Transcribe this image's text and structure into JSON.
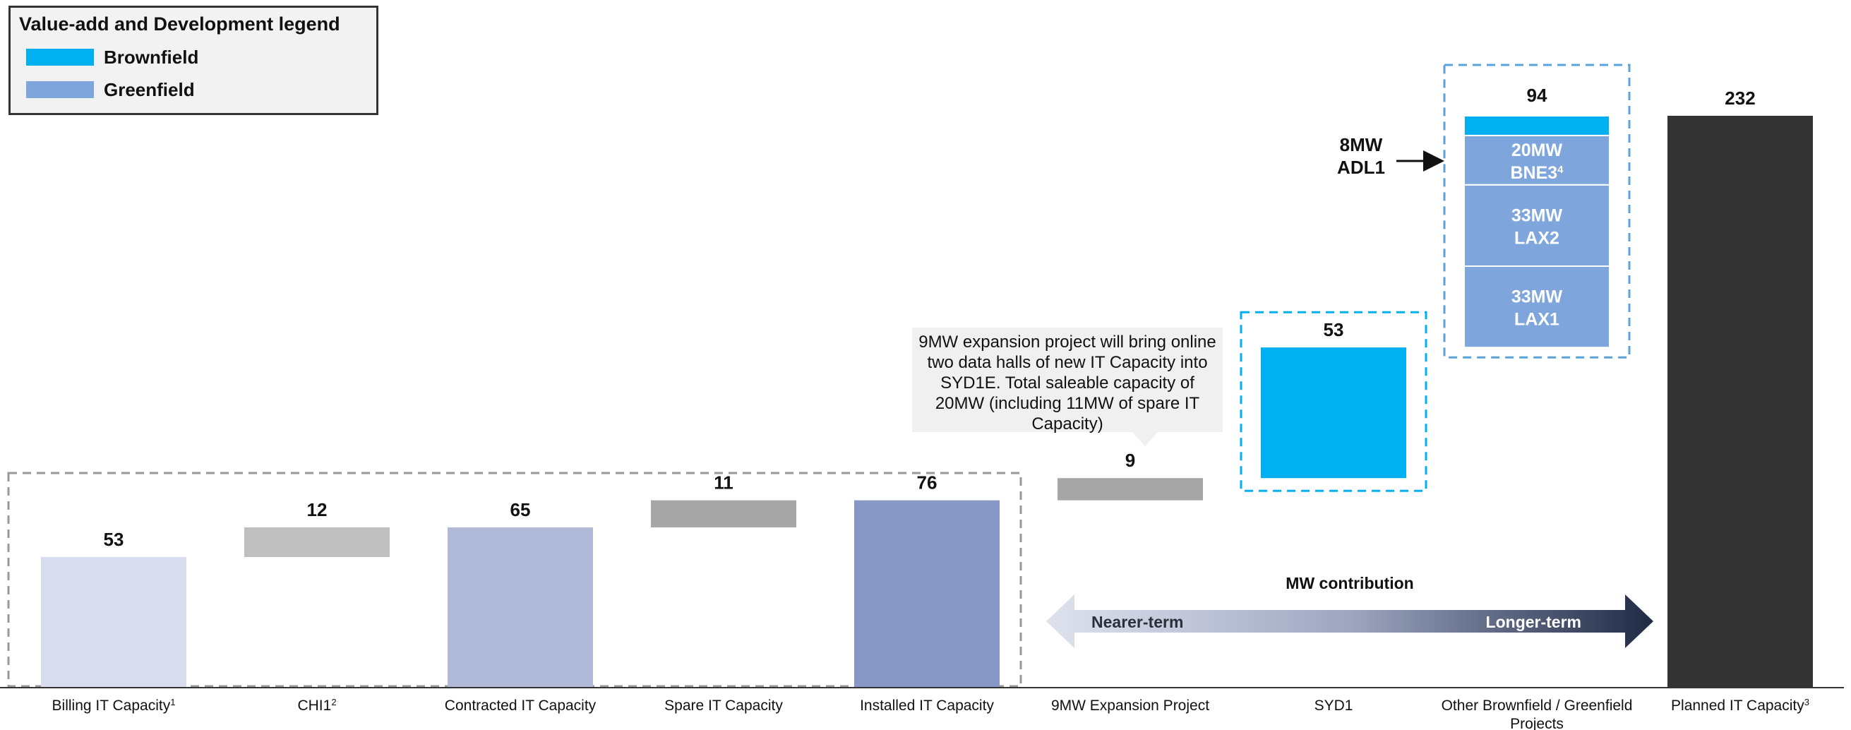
{
  "legend": {
    "title": "Value-add and Development legend",
    "items": [
      {
        "label": "Brownfield",
        "color": "#00b0f0"
      },
      {
        "label": "Greenfield",
        "color": "#7ea6dc"
      }
    ]
  },
  "callout": "9MW expansion project will bring online two data halls of new IT Capacity into SYD1E. Total saleable capacity of 20MW (including 11MW of spare IT Capacity)",
  "arrow": {
    "title": "MW contribution",
    "left_label": "Nearer-term",
    "right_label": "Longer-term"
  },
  "adl1_note": {
    "line1": "8MW",
    "line2": "ADL1"
  },
  "chart_data": {
    "type": "bar",
    "subtype": "waterfall",
    "unit": "MW",
    "categories": [
      {
        "label": "Billing IT Capacity",
        "sup": "1"
      },
      {
        "label": "CHI1",
        "sup": "2"
      },
      {
        "label": "Contracted IT Capacity",
        "sup": ""
      },
      {
        "label": "Spare IT Capacity",
        "sup": ""
      },
      {
        "label": "Installed IT Capacity",
        "sup": ""
      },
      {
        "label": "9MW Expansion Project",
        "sup": ""
      },
      {
        "label": "SYD1",
        "sup": ""
      },
      {
        "label": "Other Brownfield / Greenfield Projects",
        "sup": ""
      },
      {
        "label": "Planned IT Capacity",
        "sup": "3"
      }
    ],
    "bars": [
      {
        "category": 0,
        "base": 0,
        "value": 53,
        "label": "53",
        "color": "#d9dcec",
        "kind": "total"
      },
      {
        "category": 1,
        "base": 53,
        "value": 12,
        "label": "12",
        "color": "#bfbfbf",
        "kind": "step"
      },
      {
        "category": 2,
        "base": 0,
        "value": 65,
        "label": "65",
        "color": "#b1b9d9",
        "kind": "total"
      },
      {
        "category": 3,
        "base": 65,
        "value": 11,
        "label": "11",
        "color": "#a6a6a6",
        "kind": "step"
      },
      {
        "category": 4,
        "base": 0,
        "value": 76,
        "label": "76",
        "color": "#8898c6",
        "kind": "total"
      },
      {
        "category": 5,
        "base": 76,
        "value": 9,
        "label": "9",
        "color": "#a6a6a6",
        "kind": "step"
      },
      {
        "category": 6,
        "base": 85,
        "value": 53,
        "label": "53",
        "color": "#00b0f0",
        "kind": "step"
      },
      {
        "category": 7,
        "base": 138,
        "value": 94,
        "label": "94",
        "color": "#7ea6dc",
        "kind": "stacked",
        "segments": [
          {
            "value": 33,
            "line1": "33MW",
            "line2": "LAX1",
            "sup": "",
            "color": "#7ea6dc"
          },
          {
            "value": 33,
            "line1": "33MW",
            "line2": "LAX2",
            "sup": "",
            "color": "#7ea6dc"
          },
          {
            "value": 20,
            "line1": "20MW",
            "line2": "BNE3",
            "sup": "4",
            "color": "#7ea6dc"
          },
          {
            "value": 8,
            "line1": "",
            "line2": "",
            "sup": "",
            "color": "#00b0f0"
          }
        ]
      },
      {
        "category": 8,
        "base": 0,
        "value": 232,
        "label": "232",
        "color": "#333333",
        "kind": "total"
      }
    ],
    "ylim": [
      0,
      232
    ],
    "grid": false,
    "legend_position": "top-left"
  }
}
